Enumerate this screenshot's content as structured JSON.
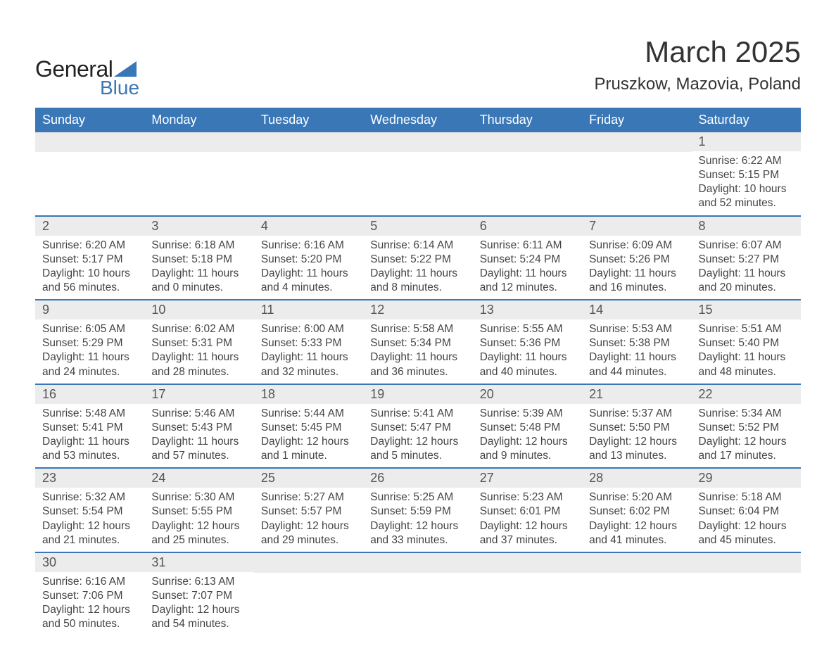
{
  "logo": {
    "text_general": "General",
    "text_blue": "Blue",
    "shape_color": "#3a77b7"
  },
  "header": {
    "month_title": "March 2025",
    "location": "Pruszkow, Mazovia, Poland"
  },
  "colors": {
    "header_bg": "#3a77b7",
    "daynum_bg": "#ececec",
    "row_border": "#3a77b7",
    "text": "#444444",
    "header_text": "#ffffff"
  },
  "typography": {
    "body_fontsize": 15.5,
    "daynum_fontsize": 18,
    "weekday_fontsize": 18,
    "title_fontsize": 42,
    "location_fontsize": 24
  },
  "weekdays": [
    "Sunday",
    "Monday",
    "Tuesday",
    "Wednesday",
    "Thursday",
    "Friday",
    "Saturday"
  ],
  "weeks": [
    [
      {
        "empty": true
      },
      {
        "empty": true
      },
      {
        "empty": true
      },
      {
        "empty": true
      },
      {
        "empty": true
      },
      {
        "empty": true
      },
      {
        "day": "1",
        "sunrise": "Sunrise: 6:22 AM",
        "sunset": "Sunset: 5:15 PM",
        "daylight": "Daylight: 10 hours and 52 minutes."
      }
    ],
    [
      {
        "day": "2",
        "sunrise": "Sunrise: 6:20 AM",
        "sunset": "Sunset: 5:17 PM",
        "daylight": "Daylight: 10 hours and 56 minutes."
      },
      {
        "day": "3",
        "sunrise": "Sunrise: 6:18 AM",
        "sunset": "Sunset: 5:18 PM",
        "daylight": "Daylight: 11 hours and 0 minutes."
      },
      {
        "day": "4",
        "sunrise": "Sunrise: 6:16 AM",
        "sunset": "Sunset: 5:20 PM",
        "daylight": "Daylight: 11 hours and 4 minutes."
      },
      {
        "day": "5",
        "sunrise": "Sunrise: 6:14 AM",
        "sunset": "Sunset: 5:22 PM",
        "daylight": "Daylight: 11 hours and 8 minutes."
      },
      {
        "day": "6",
        "sunrise": "Sunrise: 6:11 AM",
        "sunset": "Sunset: 5:24 PM",
        "daylight": "Daylight: 11 hours and 12 minutes."
      },
      {
        "day": "7",
        "sunrise": "Sunrise: 6:09 AM",
        "sunset": "Sunset: 5:26 PM",
        "daylight": "Daylight: 11 hours and 16 minutes."
      },
      {
        "day": "8",
        "sunrise": "Sunrise: 6:07 AM",
        "sunset": "Sunset: 5:27 PM",
        "daylight": "Daylight: 11 hours and 20 minutes."
      }
    ],
    [
      {
        "day": "9",
        "sunrise": "Sunrise: 6:05 AM",
        "sunset": "Sunset: 5:29 PM",
        "daylight": "Daylight: 11 hours and 24 minutes."
      },
      {
        "day": "10",
        "sunrise": "Sunrise: 6:02 AM",
        "sunset": "Sunset: 5:31 PM",
        "daylight": "Daylight: 11 hours and 28 minutes."
      },
      {
        "day": "11",
        "sunrise": "Sunrise: 6:00 AM",
        "sunset": "Sunset: 5:33 PM",
        "daylight": "Daylight: 11 hours and 32 minutes."
      },
      {
        "day": "12",
        "sunrise": "Sunrise: 5:58 AM",
        "sunset": "Sunset: 5:34 PM",
        "daylight": "Daylight: 11 hours and 36 minutes."
      },
      {
        "day": "13",
        "sunrise": "Sunrise: 5:55 AM",
        "sunset": "Sunset: 5:36 PM",
        "daylight": "Daylight: 11 hours and 40 minutes."
      },
      {
        "day": "14",
        "sunrise": "Sunrise: 5:53 AM",
        "sunset": "Sunset: 5:38 PM",
        "daylight": "Daylight: 11 hours and 44 minutes."
      },
      {
        "day": "15",
        "sunrise": "Sunrise: 5:51 AM",
        "sunset": "Sunset: 5:40 PM",
        "daylight": "Daylight: 11 hours and 48 minutes."
      }
    ],
    [
      {
        "day": "16",
        "sunrise": "Sunrise: 5:48 AM",
        "sunset": "Sunset: 5:41 PM",
        "daylight": "Daylight: 11 hours and 53 minutes."
      },
      {
        "day": "17",
        "sunrise": "Sunrise: 5:46 AM",
        "sunset": "Sunset: 5:43 PM",
        "daylight": "Daylight: 11 hours and 57 minutes."
      },
      {
        "day": "18",
        "sunrise": "Sunrise: 5:44 AM",
        "sunset": "Sunset: 5:45 PM",
        "daylight": "Daylight: 12 hours and 1 minute."
      },
      {
        "day": "19",
        "sunrise": "Sunrise: 5:41 AM",
        "sunset": "Sunset: 5:47 PM",
        "daylight": "Daylight: 12 hours and 5 minutes."
      },
      {
        "day": "20",
        "sunrise": "Sunrise: 5:39 AM",
        "sunset": "Sunset: 5:48 PM",
        "daylight": "Daylight: 12 hours and 9 minutes."
      },
      {
        "day": "21",
        "sunrise": "Sunrise: 5:37 AM",
        "sunset": "Sunset: 5:50 PM",
        "daylight": "Daylight: 12 hours and 13 minutes."
      },
      {
        "day": "22",
        "sunrise": "Sunrise: 5:34 AM",
        "sunset": "Sunset: 5:52 PM",
        "daylight": "Daylight: 12 hours and 17 minutes."
      }
    ],
    [
      {
        "day": "23",
        "sunrise": "Sunrise: 5:32 AM",
        "sunset": "Sunset: 5:54 PM",
        "daylight": "Daylight: 12 hours and 21 minutes."
      },
      {
        "day": "24",
        "sunrise": "Sunrise: 5:30 AM",
        "sunset": "Sunset: 5:55 PM",
        "daylight": "Daylight: 12 hours and 25 minutes."
      },
      {
        "day": "25",
        "sunrise": "Sunrise: 5:27 AM",
        "sunset": "Sunset: 5:57 PM",
        "daylight": "Daylight: 12 hours and 29 minutes."
      },
      {
        "day": "26",
        "sunrise": "Sunrise: 5:25 AM",
        "sunset": "Sunset: 5:59 PM",
        "daylight": "Daylight: 12 hours and 33 minutes."
      },
      {
        "day": "27",
        "sunrise": "Sunrise: 5:23 AM",
        "sunset": "Sunset: 6:01 PM",
        "daylight": "Daylight: 12 hours and 37 minutes."
      },
      {
        "day": "28",
        "sunrise": "Sunrise: 5:20 AM",
        "sunset": "Sunset: 6:02 PM",
        "daylight": "Daylight: 12 hours and 41 minutes."
      },
      {
        "day": "29",
        "sunrise": "Sunrise: 5:18 AM",
        "sunset": "Sunset: 6:04 PM",
        "daylight": "Daylight: 12 hours and 45 minutes."
      }
    ],
    [
      {
        "day": "30",
        "sunrise": "Sunrise: 6:16 AM",
        "sunset": "Sunset: 7:06 PM",
        "daylight": "Daylight: 12 hours and 50 minutes."
      },
      {
        "day": "31",
        "sunrise": "Sunrise: 6:13 AM",
        "sunset": "Sunset: 7:07 PM",
        "daylight": "Daylight: 12 hours and 54 minutes."
      },
      {
        "empty": true
      },
      {
        "empty": true
      },
      {
        "empty": true
      },
      {
        "empty": true
      },
      {
        "empty": true
      }
    ]
  ]
}
